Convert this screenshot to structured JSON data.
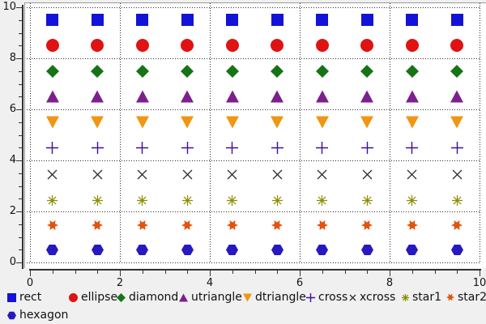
{
  "figure": {
    "background": "#f0f0f0",
    "plot_background": "#ffffff",
    "frame_color": "#9b9b9b",
    "axis_color": "#333333",
    "grid_color": "#2b2b2b",
    "tick_label_color": "#141414",
    "legend_text_color": "#111111"
  },
  "chart_data": {
    "type": "scatter",
    "title": "",
    "xlabel": "",
    "ylabel": "",
    "xlim": [
      0,
      10
    ],
    "ylim": [
      0,
      10
    ],
    "x_major_ticks": [
      0,
      2,
      4,
      6,
      8,
      10
    ],
    "y_major_ticks": [
      0,
      2,
      4,
      6,
      8,
      10
    ],
    "x_tick_labels": [
      "0",
      "2",
      "4",
      "6",
      "8",
      "10"
    ],
    "y_tick_labels": [
      "0",
      "2",
      "4",
      "6",
      "8",
      "10"
    ],
    "minor_tick_step": 0.5,
    "grid": "dotted lines at major ticks, both axes",
    "legend_position": "bottom",
    "x": [
      0.5,
      1.5,
      2.5,
      3.5,
      4.5,
      5.5,
      6.5,
      7.5,
      8.5,
      9.5
    ],
    "series": [
      {
        "name": "rect",
        "marker": "rect",
        "color": "#1313d7",
        "y": 9.5
      },
      {
        "name": "ellipse",
        "marker": "ellipse",
        "color": "#e01212",
        "y": 8.5
      },
      {
        "name": "diamond",
        "marker": "diamond",
        "color": "#167416",
        "y": 7.5
      },
      {
        "name": "utriangle",
        "marker": "utriangle",
        "color": "#7e1f8e",
        "y": 6.5
      },
      {
        "name": "dtriangle",
        "marker": "dtriangle",
        "color": "#f09613",
        "y": 5.5
      },
      {
        "name": "cross",
        "marker": "cross",
        "color": "#3f109d",
        "y": 4.5
      },
      {
        "name": "xcross",
        "marker": "xcross",
        "color": "#2e2e2e",
        "y": 3.5
      },
      {
        "name": "star1",
        "marker": "star1",
        "color": "#8d8d00",
        "y": 2.5
      },
      {
        "name": "star2",
        "marker": "star2",
        "color": "#e2530d",
        "y": 1.5
      },
      {
        "name": "hexagon",
        "marker": "hexagon",
        "color": "#2818c0",
        "y": 0.5
      }
    ]
  }
}
